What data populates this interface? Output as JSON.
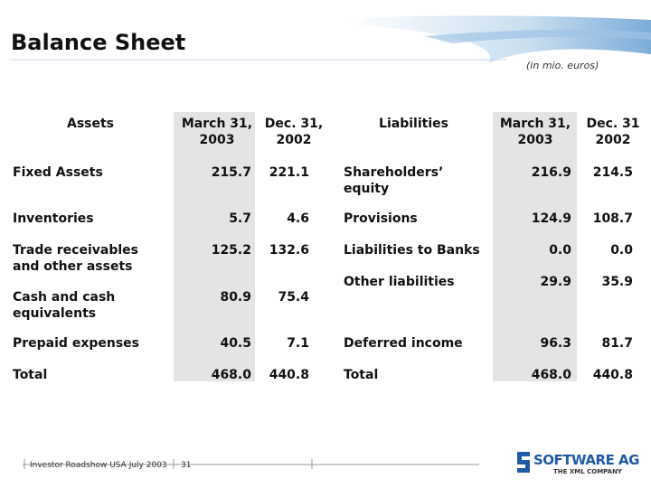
{
  "header": {
    "title": "Balance Sheet",
    "subtitle": "(in mio. euros)"
  },
  "table": {
    "header": [
      "Assets",
      "March 31, 2003",
      "Dec. 31, 2002",
      "Liabilities",
      "March 31, 2003",
      "Dec. 31 2002"
    ],
    "rows": [
      [
        "Fixed Assets",
        "215.7",
        "221.1",
        "Shareholders’ equity",
        "216.9",
        "214.5"
      ],
      [
        "Inventories",
        "5.7",
        "4.6",
        "Provisions",
        "124.9",
        "108.7"
      ],
      [
        "Trade receivables and other assets",
        "125.2",
        "132.6",
        "Liabilities to Banks",
        "0.0",
        "0.0"
      ],
      [
        null,
        null,
        null,
        "Other liabilities",
        "29.9",
        "35.9"
      ],
      [
        "Cash and cash equivalents",
        "80.9",
        "75.4",
        null,
        null,
        null
      ],
      [
        "Prepaid expenses",
        "40.5",
        "7.1",
        "Deferred income",
        "96.3",
        "81.7"
      ],
      [
        "Total",
        "468.0",
        "440.8",
        "Total",
        "468.0",
        "440.8"
      ]
    ]
  },
  "footer": {
    "event": "Investor Roadshow USA July 2003",
    "page": "31",
    "logo": "SOFTWARE AG",
    "tagline": "THE XML COMPANY"
  }
}
